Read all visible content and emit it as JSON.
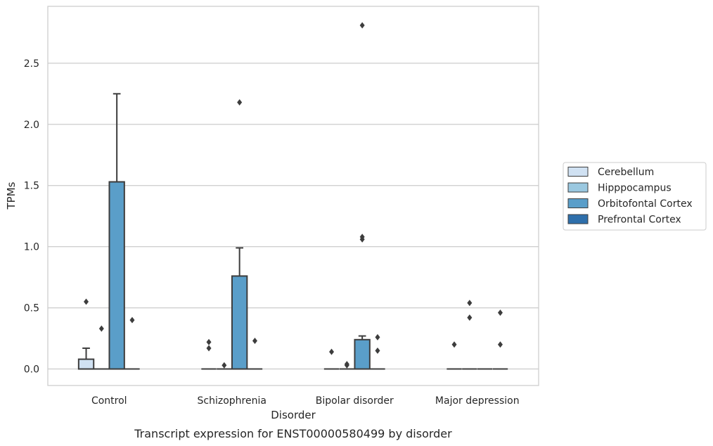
{
  "chart_data": {
    "type": "box",
    "caption": "Transcript expression for ENST00000580499 by disorder",
    "xlabel": "Disorder",
    "ylabel": "TPMs",
    "ylim": [
      -0.135,
      2.965
    ],
    "yticks": [
      0.0,
      0.5,
      1.0,
      1.5,
      2.0,
      2.5
    ],
    "ytick_labels": [
      "0.0",
      "0.5",
      "1.0",
      "1.5",
      "2.0",
      "2.5"
    ],
    "grid": true,
    "legend_position": "right",
    "categories": [
      "Control",
      "Schizophrenia",
      "Bipolar disorder",
      "Major depression"
    ],
    "series": [
      {
        "name": "Cerebellum",
        "color": "#d0e1f2",
        "boxes": [
          {
            "q1": 0.0,
            "median": 0.0,
            "q3": 0.08,
            "whisker_low": 0.0,
            "whisker_high": 0.17,
            "outliers": [
              0.55
            ]
          },
          {
            "q1": 0.0,
            "median": 0.0,
            "q3": 0.0,
            "whisker_low": 0.0,
            "whisker_high": 0.0,
            "outliers": [
              0.17,
              0.22
            ]
          },
          {
            "q1": 0.0,
            "median": 0.0,
            "q3": 0.0,
            "whisker_low": 0.0,
            "whisker_high": 0.0,
            "outliers": [
              0.14
            ]
          },
          {
            "q1": 0.0,
            "median": 0.0,
            "q3": 0.0,
            "whisker_low": 0.0,
            "whisker_high": 0.0,
            "outliers": [
              0.2
            ]
          }
        ]
      },
      {
        "name": "Hipppocampus",
        "color": "#9ac8e0",
        "boxes": [
          {
            "q1": 0.0,
            "median": 0.0,
            "q3": 0.0,
            "whisker_low": 0.0,
            "whisker_high": 0.0,
            "outliers": [
              0.33
            ]
          },
          {
            "q1": 0.0,
            "median": 0.0,
            "q3": 0.0,
            "whisker_low": 0.0,
            "whisker_high": 0.0,
            "outliers": [
              0.03
            ]
          },
          {
            "q1": 0.0,
            "median": 0.0,
            "q3": 0.0,
            "whisker_low": 0.0,
            "whisker_high": 0.0,
            "outliers": [
              0.03,
              0.04
            ]
          },
          {
            "q1": 0.0,
            "median": 0.0,
            "q3": 0.0,
            "whisker_low": 0.0,
            "whisker_high": 0.0,
            "outliers": [
              0.42,
              0.54
            ]
          }
        ]
      },
      {
        "name": "Orbitofontal Cortex",
        "color": "#5a9ec9",
        "boxes": [
          {
            "q1": 0.0,
            "median": 0.0,
            "q3": 1.53,
            "whisker_low": 0.0,
            "whisker_high": 2.25,
            "outliers": []
          },
          {
            "q1": 0.0,
            "median": 0.0,
            "q3": 0.76,
            "whisker_low": 0.0,
            "whisker_high": 0.99,
            "outliers": [
              2.18
            ]
          },
          {
            "q1": 0.0,
            "median": 0.0,
            "q3": 0.24,
            "whisker_low": 0.0,
            "whisker_high": 0.27,
            "outliers": [
              1.06,
              1.08,
              2.81
            ]
          },
          {
            "q1": 0.0,
            "median": 0.0,
            "q3": 0.0,
            "whisker_low": 0.0,
            "whisker_high": 0.0,
            "outliers": []
          }
        ]
      },
      {
        "name": "Prefrontal Cortex",
        "color": "#2e6fab",
        "boxes": [
          {
            "q1": 0.0,
            "median": 0.0,
            "q3": 0.0,
            "whisker_low": 0.0,
            "whisker_high": 0.0,
            "outliers": [
              0.4
            ]
          },
          {
            "q1": 0.0,
            "median": 0.0,
            "q3": 0.0,
            "whisker_low": 0.0,
            "whisker_high": 0.0,
            "outliers": [
              0.23
            ]
          },
          {
            "q1": 0.0,
            "median": 0.0,
            "q3": 0.0,
            "whisker_low": 0.0,
            "whisker_high": 0.0,
            "outliers": [
              0.15,
              0.26
            ]
          },
          {
            "q1": 0.0,
            "median": 0.0,
            "q3": 0.0,
            "whisker_low": 0.0,
            "whisker_high": 0.0,
            "outliers": [
              0.2,
              0.46
            ]
          }
        ]
      }
    ]
  }
}
